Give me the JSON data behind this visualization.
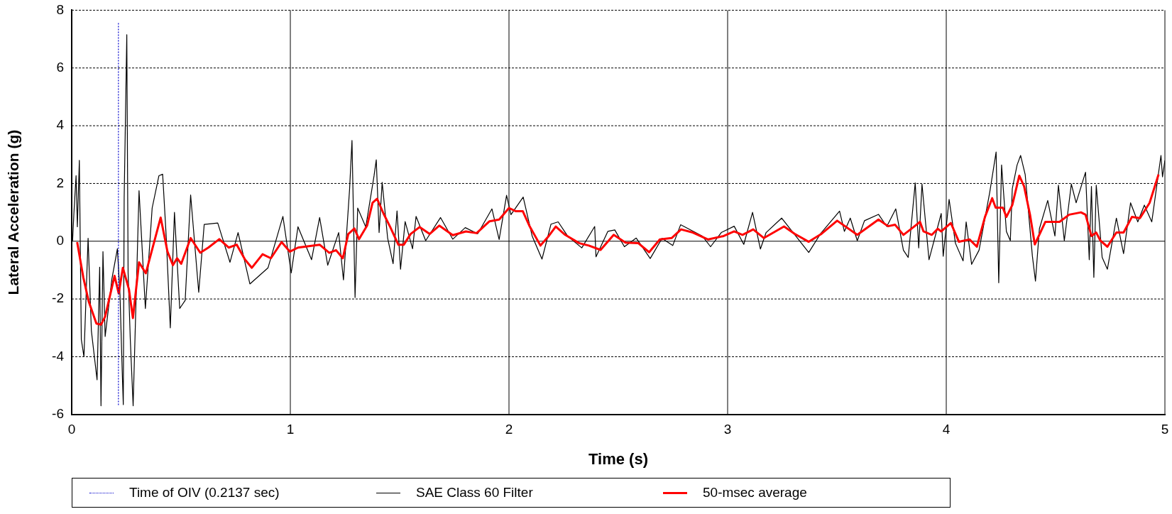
{
  "chart_data": {
    "type": "line",
    "xlabel": "Time (s)",
    "ylabel": "Lateral Acceleration (g)",
    "xlim": [
      0,
      5
    ],
    "xticks": [
      0,
      1,
      2,
      3,
      4,
      5
    ],
    "ylim": [
      -6,
      8
    ],
    "yticks": [
      -6,
      -4,
      -2,
      0,
      2,
      4,
      6,
      8
    ],
    "grid": true,
    "legend": "bottom",
    "marker": "none",
    "line_style": "solid",
    "ref_lines": [
      {
        "axis": "x",
        "value": 0.2137,
        "label": "Time of OIV (0.2137 sec)",
        "color": "#0000cc",
        "line_style": "dotted"
      }
    ],
    "series": [
      {
        "name": "SAE Class 60 Filter",
        "color": "#000000",
        "x": [
          0.004,
          0.01,
          0.02,
          0.026,
          0.035,
          0.044,
          0.056,
          0.075,
          0.09,
          0.116,
          0.128,
          0.134,
          0.143,
          0.153,
          0.184,
          0.209,
          0.221,
          0.231,
          0.236,
          0.24,
          0.252,
          0.258,
          0.268,
          0.281,
          0.308,
          0.337,
          0.368,
          0.399,
          0.416,
          0.432,
          0.451,
          0.47,
          0.494,
          0.519,
          0.544,
          0.581,
          0.606,
          0.668,
          0.724,
          0.761,
          0.815,
          0.898,
          0.966,
          1.004,
          1.035,
          1.097,
          1.134,
          1.171,
          1.221,
          1.243,
          1.271,
          1.282,
          1.296,
          1.308,
          1.345,
          1.383,
          1.393,
          1.406,
          1.42,
          1.445,
          1.47,
          1.488,
          1.504,
          1.525,
          1.559,
          1.575,
          1.619,
          1.687,
          1.743,
          1.8,
          1.857,
          1.922,
          1.955,
          1.989,
          2.009,
          2.065,
          2.106,
          2.151,
          2.192,
          2.225,
          2.268,
          2.333,
          2.392,
          2.398,
          2.452,
          2.484,
          2.528,
          2.582,
          2.646,
          2.7,
          2.749,
          2.785,
          2.884,
          2.922,
          2.971,
          3.03,
          3.074,
          3.114,
          3.15,
          3.176,
          3.247,
          3.295,
          3.371,
          3.425,
          3.512,
          3.534,
          3.561,
          3.593,
          3.626,
          3.69,
          3.728,
          3.769,
          3.804,
          3.826,
          3.858,
          3.874,
          3.889,
          3.921,
          3.977,
          3.986,
          4.013,
          4.042,
          4.077,
          4.091,
          4.116,
          4.15,
          4.199,
          4.228,
          4.24,
          4.253,
          4.275,
          4.293,
          4.302,
          4.324,
          4.34,
          4.361,
          4.394,
          4.408,
          4.426,
          4.464,
          4.497,
          4.513,
          4.54,
          4.572,
          4.594,
          4.637,
          4.654,
          4.664,
          4.675,
          4.686,
          4.713,
          4.737,
          4.778,
          4.811,
          4.843,
          4.876,
          4.906,
          4.94,
          4.982,
          4.989,
          5.0
        ],
        "values": [
          0,
          0.96,
          2.27,
          0.5,
          2.8,
          -3.4,
          -4.0,
          0.1,
          -3.1,
          -4.8,
          -0.9,
          -5.7,
          -0.36,
          -3.3,
          -1.3,
          -0.26,
          -1.86,
          -4.5,
          -5.66,
          1.5,
          7.15,
          -1.1,
          -3.4,
          -5.7,
          1.75,
          -2.33,
          1.15,
          2.27,
          2.32,
          0.2,
          -3.0,
          1.0,
          -2.33,
          -2.05,
          1.6,
          -1.77,
          0.58,
          0.63,
          -0.73,
          0.3,
          -1.48,
          -0.92,
          0.86,
          -1.1,
          0.5,
          -0.64,
          0.82,
          -0.83,
          0.3,
          -1.34,
          1.8,
          3.49,
          -1.95,
          1.15,
          0.49,
          2.27,
          2.82,
          0.3,
          2.04,
          0.11,
          -0.78,
          1.05,
          -0.97,
          0.68,
          -0.26,
          0.86,
          0.02,
          0.82,
          0.07,
          0.47,
          0.26,
          1.12,
          0.06,
          1.59,
          0.92,
          1.53,
          0.18,
          -0.62,
          0.59,
          0.67,
          0.18,
          -0.23,
          0.51,
          -0.54,
          0.34,
          0.39,
          -0.19,
          0.11,
          -0.6,
          0.1,
          -0.15,
          0.57,
          0.18,
          -0.19,
          0.3,
          0.52,
          -0.11,
          1.0,
          -0.27,
          0.3,
          0.8,
          0.34,
          -0.39,
          0.26,
          1.04,
          0.34,
          0.8,
          0.02,
          0.71,
          0.93,
          0.51,
          1.12,
          -0.31,
          -0.56,
          2.02,
          -0.23,
          1.98,
          -0.64,
          0.96,
          -0.52,
          1.45,
          -0.07,
          -0.68,
          0.67,
          -0.8,
          -0.31,
          1.7,
          3.09,
          -1.44,
          2.64,
          0.34,
          0.02,
          1.82,
          2.64,
          2.97,
          2.31,
          -0.52,
          -1.38,
          0.43,
          1.41,
          0.18,
          1.94,
          0.02,
          1.98,
          1.33,
          2.39,
          -0.64,
          1.9,
          -1.25,
          1.94,
          -0.56,
          -0.97,
          0.8,
          -0.43,
          1.33,
          0.67,
          1.25,
          0.67,
          2.97,
          2.23,
          2.8
        ]
      },
      {
        "name": "50-msec average",
        "color": "#ff0000",
        "x": [
          0.025,
          0.053,
          0.078,
          0.113,
          0.134,
          0.153,
          0.196,
          0.215,
          0.234,
          0.262,
          0.28,
          0.308,
          0.339,
          0.407,
          0.438,
          0.463,
          0.482,
          0.501,
          0.544,
          0.588,
          0.625,
          0.675,
          0.718,
          0.755,
          0.793,
          0.824,
          0.873,
          0.911,
          0.96,
          0.998,
          1.035,
          1.134,
          1.178,
          1.209,
          1.24,
          1.265,
          1.293,
          1.314,
          1.351,
          1.376,
          1.397,
          1.426,
          1.457,
          1.494,
          1.519,
          1.55,
          1.591,
          1.637,
          1.681,
          1.743,
          1.803,
          1.852,
          1.911,
          1.955,
          2.0,
          2.03,
          2.063,
          2.095,
          2.144,
          2.182,
          2.214,
          2.257,
          2.322,
          2.365,
          2.419,
          2.479,
          2.533,
          2.592,
          2.641,
          2.69,
          2.744,
          2.787,
          2.841,
          2.911,
          2.982,
          3.03,
          3.068,
          3.117,
          3.166,
          3.258,
          3.306,
          3.371,
          3.43,
          3.501,
          3.593,
          3.69,
          3.734,
          3.766,
          3.804,
          3.847,
          3.88,
          3.896,
          3.934,
          3.961,
          3.977,
          4.021,
          4.058,
          4.107,
          4.14,
          4.177,
          4.21,
          4.226,
          4.259,
          4.275,
          4.302,
          4.334,
          4.356,
          4.383,
          4.405,
          4.453,
          4.518,
          4.562,
          4.616,
          4.637,
          4.664,
          4.686,
          4.705,
          4.737,
          4.778,
          4.811,
          4.849,
          4.886,
          4.93,
          4.971
        ],
        "values": [
          -0.03,
          -1.25,
          -2.09,
          -2.85,
          -2.89,
          -2.61,
          -1.2,
          -1.81,
          -0.92,
          -1.67,
          -2.66,
          -0.73,
          -1.11,
          0.82,
          -0.36,
          -0.83,
          -0.59,
          -0.78,
          0.11,
          -0.4,
          -0.22,
          0.07,
          -0.22,
          -0.12,
          -0.64,
          -0.92,
          -0.45,
          -0.59,
          -0.03,
          -0.36,
          -0.22,
          -0.12,
          -0.4,
          -0.31,
          -0.59,
          0.25,
          0.44,
          0.07,
          0.54,
          1.33,
          1.47,
          0.96,
          0.49,
          -0.12,
          -0.12,
          0.25,
          0.49,
          0.25,
          0.54,
          0.21,
          0.34,
          0.28,
          0.69,
          0.75,
          1.15,
          1.04,
          1.04,
          0.51,
          -0.15,
          0.18,
          0.51,
          0.22,
          -0.07,
          -0.15,
          -0.3,
          0.22,
          -0.05,
          -0.07,
          -0.38,
          0.06,
          0.11,
          0.41,
          0.3,
          0.06,
          0.18,
          0.34,
          0.22,
          0.41,
          0.11,
          0.51,
          0.26,
          -0.02,
          0.26,
          0.71,
          0.22,
          0.75,
          0.52,
          0.57,
          0.22,
          0.47,
          0.67,
          0.34,
          0.22,
          0.43,
          0.34,
          0.63,
          -0.02,
          0.06,
          -0.19,
          0.84,
          1.49,
          1.16,
          1.16,
          0.84,
          1.25,
          2.27,
          1.9,
          0.92,
          -0.11,
          0.67,
          0.67,
          0.92,
          1.0,
          0.92,
          0.18,
          0.3,
          0.02,
          -0.19,
          0.3,
          0.3,
          0.84,
          0.8,
          1.33,
          2.31
        ]
      }
    ]
  }
}
